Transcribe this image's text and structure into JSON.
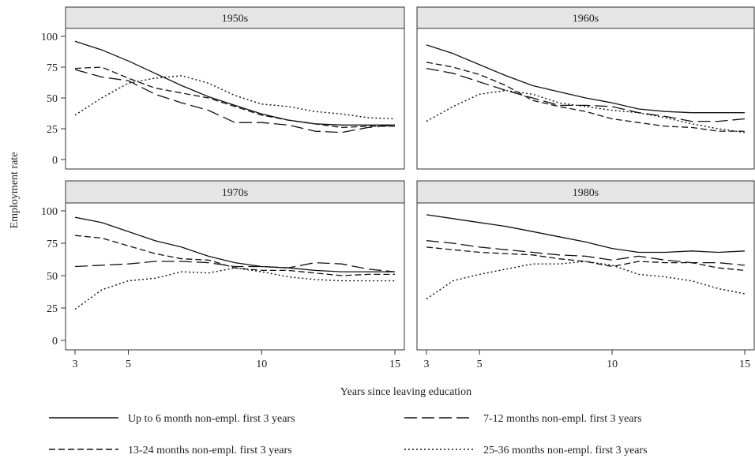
{
  "chart_data": {
    "type": "line",
    "xlabel": "Years since leaving education",
    "ylabel": "Employment rate",
    "xlim": [
      3,
      15
    ],
    "ylim": [
      0,
      100
    ],
    "xticks": [
      3,
      5,
      10,
      15
    ],
    "yticks": [
      0,
      25,
      50,
      75,
      100
    ],
    "grid": false,
    "legend_position": "bottom",
    "x": [
      3,
      4,
      5,
      6,
      7,
      8,
      9,
      10,
      11,
      12,
      13,
      14,
      15
    ],
    "series_styles": [
      {
        "name": "Up to 6 month non-empl. first 3 years",
        "dash": "solid"
      },
      {
        "name": "7-12 months non-empl. first 3 years",
        "dash": "longdash"
      },
      {
        "name": "13-24 months non-empl. first 3 years",
        "dash": "dash"
      },
      {
        "name": "25-36 months non-empl. first 3 years",
        "dash": "dot"
      }
    ],
    "panels": [
      {
        "title": "1950s",
        "series": [
          {
            "name": "Up to 6 month non-empl. first 3 years",
            "values": [
              96,
              89,
              80,
              70,
              60,
              51,
              44,
              37,
              32,
              29,
              28,
              28,
              28
            ]
          },
          {
            "name": "7-12 months non-empl. first 3 years",
            "values": [
              73,
              67,
              64,
              53,
              46,
              40,
              30,
              30,
              28,
              23,
              22,
              26,
              28
            ]
          },
          {
            "name": "13-24 months non-empl. first 3 years",
            "values": [
              74,
              75,
              66,
              58,
              54,
              50,
              43,
              36,
              32,
              29,
              26,
              27,
              27
            ]
          },
          {
            "name": "25-36 months non-empl. first 3 years",
            "values": [
              36,
              50,
              62,
              66,
              68,
              62,
              52,
              45,
              43,
              39,
              37,
              34,
              33
            ]
          }
        ]
      },
      {
        "title": "1960s",
        "series": [
          {
            "name": "Up to 6 month non-empl. first 3 years",
            "values": [
              93,
              86,
              77,
              68,
              60,
              55,
              50,
              46,
              41,
              39,
              38,
              38,
              38
            ]
          },
          {
            "name": "7-12 months non-empl. first 3 years",
            "values": [
              74,
              70,
              63,
              56,
              50,
              44,
              44,
              43,
              38,
              35,
              31,
              31,
              33
            ]
          },
          {
            "name": "13-24 months non-empl. first 3 years",
            "values": [
              79,
              75,
              69,
              60,
              48,
              43,
              39,
              33,
              30,
              27,
              26,
              23,
              23
            ]
          },
          {
            "name": "25-36 months non-empl. first 3 years",
            "values": [
              31,
              43,
              53,
              56,
              53,
              46,
              43,
              40,
              38,
              34,
              29,
              25,
              22
            ]
          }
        ]
      },
      {
        "title": "1970s",
        "series": [
          {
            "name": "Up to 6 month non-empl. first 3 years",
            "values": [
              95,
              91,
              84,
              77,
              72,
              65,
              60,
              57,
              56,
              54,
              53,
              53,
              53
            ]
          },
          {
            "name": "7-12 months non-empl. first 3 years",
            "values": [
              57,
              58,
              59,
              61,
              61,
              60,
              57,
              57,
              56,
              60,
              59,
              55,
              53
            ]
          },
          {
            "name": "13-24 months non-empl. first 3 years",
            "values": [
              81,
              79,
              73,
              67,
              63,
              62,
              56,
              54,
              54,
              52,
              50,
              51,
              51
            ]
          },
          {
            "name": "25-36 months non-empl. first 3 years",
            "values": [
              24,
              39,
              46,
              48,
              53,
              52,
              56,
              53,
              49,
              47,
              46,
              46,
              46
            ]
          }
        ]
      },
      {
        "title": "1980s",
        "series": [
          {
            "name": "Up to 6 month non-empl. first 3 years",
            "values": [
              97,
              94,
              91,
              88,
              84,
              80,
              76,
              71,
              68,
              68,
              69,
              68,
              69
            ]
          },
          {
            "name": "7-12 months non-empl. first 3 years",
            "values": [
              77,
              75,
              72,
              70,
              68,
              66,
              65,
              62,
              65,
              62,
              60,
              60,
              58
            ]
          },
          {
            "name": "13-24 months non-empl. first 3 years",
            "values": [
              72,
              70,
              68,
              67,
              66,
              63,
              61,
              57,
              61,
              60,
              60,
              56,
              54
            ]
          },
          {
            "name": "25-36 months non-empl. first 3 years",
            "values": [
              32,
              46,
              51,
              55,
              59,
              59,
              61,
              58,
              51,
              49,
              46,
              40,
              36
            ]
          }
        ]
      }
    ]
  }
}
